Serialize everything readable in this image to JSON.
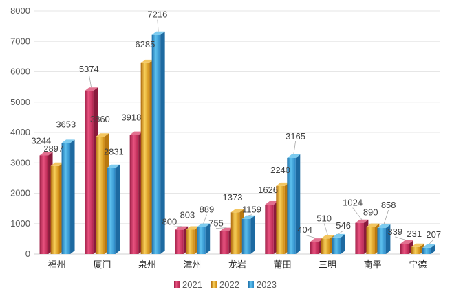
{
  "chart_data": {
    "type": "bar",
    "style": "3d-clustered-column",
    "categories": [
      "福州",
      "厦门",
      "泉州",
      "漳州",
      "龙岩",
      "莆田",
      "三明",
      "南平",
      "宁德"
    ],
    "series": [
      {
        "name": "2021",
        "values": [
          3244,
          5374,
          3918,
          800,
          755,
          1626,
          404,
          1024,
          339
        ]
      },
      {
        "name": "2022",
        "values": [
          2897,
          3860,
          6285,
          803,
          1373,
          2240,
          510,
          890,
          231
        ]
      },
      {
        "name": "2023",
        "values": [
          3653,
          2831,
          7216,
          889,
          1159,
          3165,
          546,
          858,
          207
        ]
      }
    ],
    "ylim": [
      0,
      8000
    ],
    "yticks": [
      "0",
      "1000",
      "2000",
      "3000",
      "4000",
      "5000",
      "6000",
      "7000",
      "8000"
    ],
    "grid": true,
    "legend_position": "bottom",
    "colors": {
      "2021": "#c8325f",
      "2022": "#e0a21e",
      "2023": "#2e8fce"
    }
  }
}
